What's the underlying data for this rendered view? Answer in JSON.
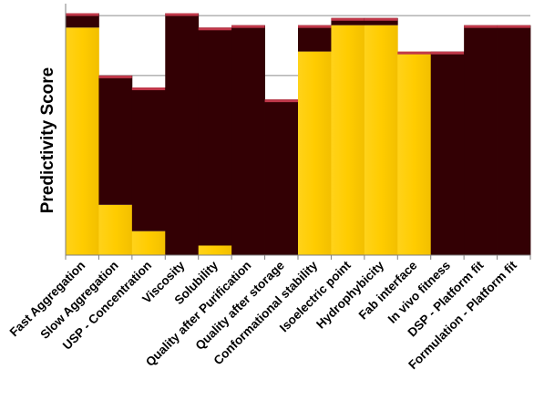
{
  "chart_data": {
    "type": "bar",
    "stacked": true,
    "ylabel": "Predictivity Score",
    "xlabel": "",
    "title": "",
    "categories": [
      "Fast Aggregation",
      "Slow Aggregation",
      "USP - Concentration",
      "Viscosity",
      "Solubility",
      "Quality after Purification",
      "Quality after storage",
      "Conformational stability",
      "Isoelectric point",
      "Hydrophybicity",
      "Fab interface",
      "In vivo fitness",
      "DSP - Platform fit",
      "Formulation - Platform fit"
    ],
    "series": [
      {
        "values": [
          0.95,
          0.21,
          0.1,
          0.0,
          0.04,
          0.0,
          0.0,
          0.85,
          0.96,
          0.96,
          0.85,
          0.0,
          0.0,
          0.0
        ]
      },
      {
        "values": [
          0.06,
          0.54,
          0.6,
          1.01,
          0.91,
          0.96,
          0.65,
          0.11,
          0.03,
          0.03,
          0.0,
          0.85,
          0.96,
          0.96
        ]
      }
    ],
    "colors": {
      "yellow": "#ffcc00",
      "maroon": "#330004",
      "top_edge": "#c0384a",
      "grid": "#8c8c8c"
    },
    "ylim": [
      0,
      1.05
    ],
    "grid": true,
    "legend": "none"
  }
}
